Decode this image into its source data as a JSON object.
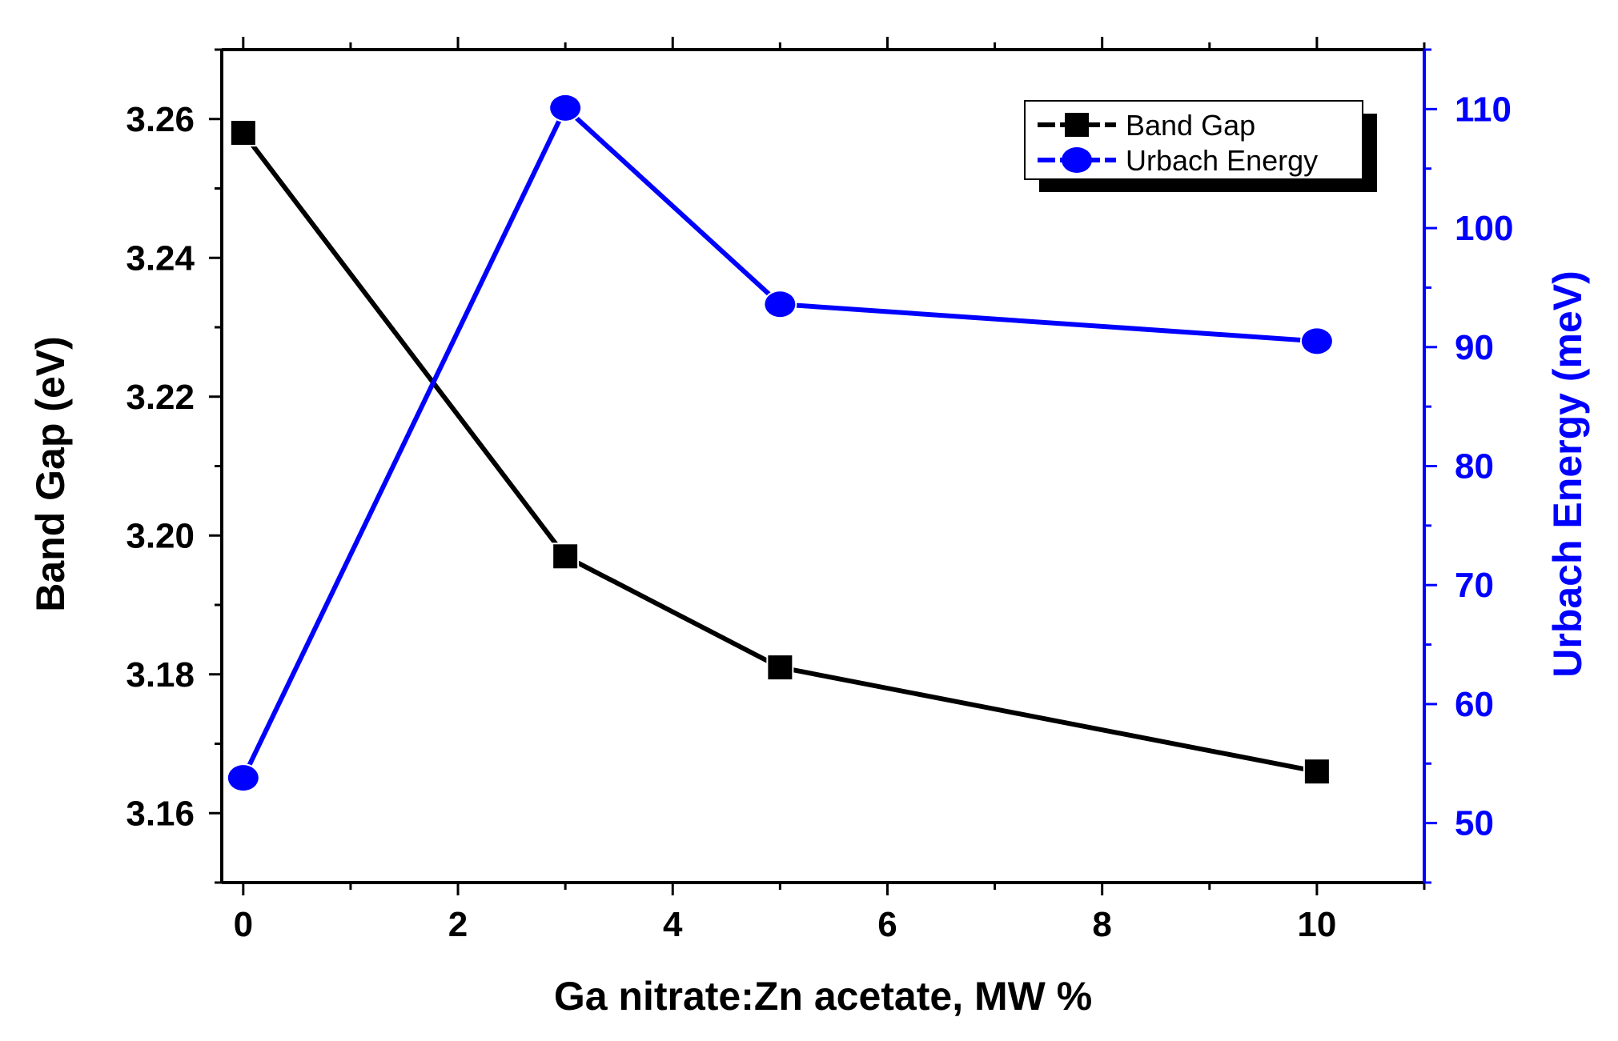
{
  "chart_data": {
    "type": "line",
    "x": [
      0,
      3,
      5,
      10
    ],
    "xlabel": "Ga nitrate:Zn acetate, MW %",
    "xlim": [
      -0.2,
      11.0
    ],
    "xticks": [
      0,
      2,
      4,
      6,
      8,
      10
    ],
    "xtick_labels": [
      "0",
      "2",
      "4",
      "6",
      "8",
      "10"
    ],
    "ylim_left": [
      3.15,
      3.27
    ],
    "yticks_left": [
      3.16,
      3.18,
      3.2,
      3.22,
      3.24,
      3.26
    ],
    "ytick_labels_left": [
      "3.16",
      "3.18",
      "3.20",
      "3.22",
      "3.24",
      "3.26"
    ],
    "ylabel_left": "Band Gap (eV)",
    "ylim_right": [
      45,
      115
    ],
    "yticks_right": [
      50,
      60,
      70,
      80,
      90,
      100,
      110
    ],
    "ytick_labels_right": [
      "50",
      "60",
      "70",
      "80",
      "90",
      "100",
      "110"
    ],
    "ylabel_right": "Urbach Energy (meV)",
    "series": [
      {
        "name": "Band Gap",
        "axis": "left",
        "marker": "square",
        "color": "#000000",
        "values": [
          3.258,
          3.197,
          3.181,
          3.166
        ]
      },
      {
        "name": "Urbach Energy",
        "axis": "right",
        "marker": "circle",
        "color": "#0000ff",
        "values": [
          53.8,
          110.1,
          93.6,
          90.5
        ]
      }
    ],
    "legend_position": "top-right",
    "grid": false
  }
}
